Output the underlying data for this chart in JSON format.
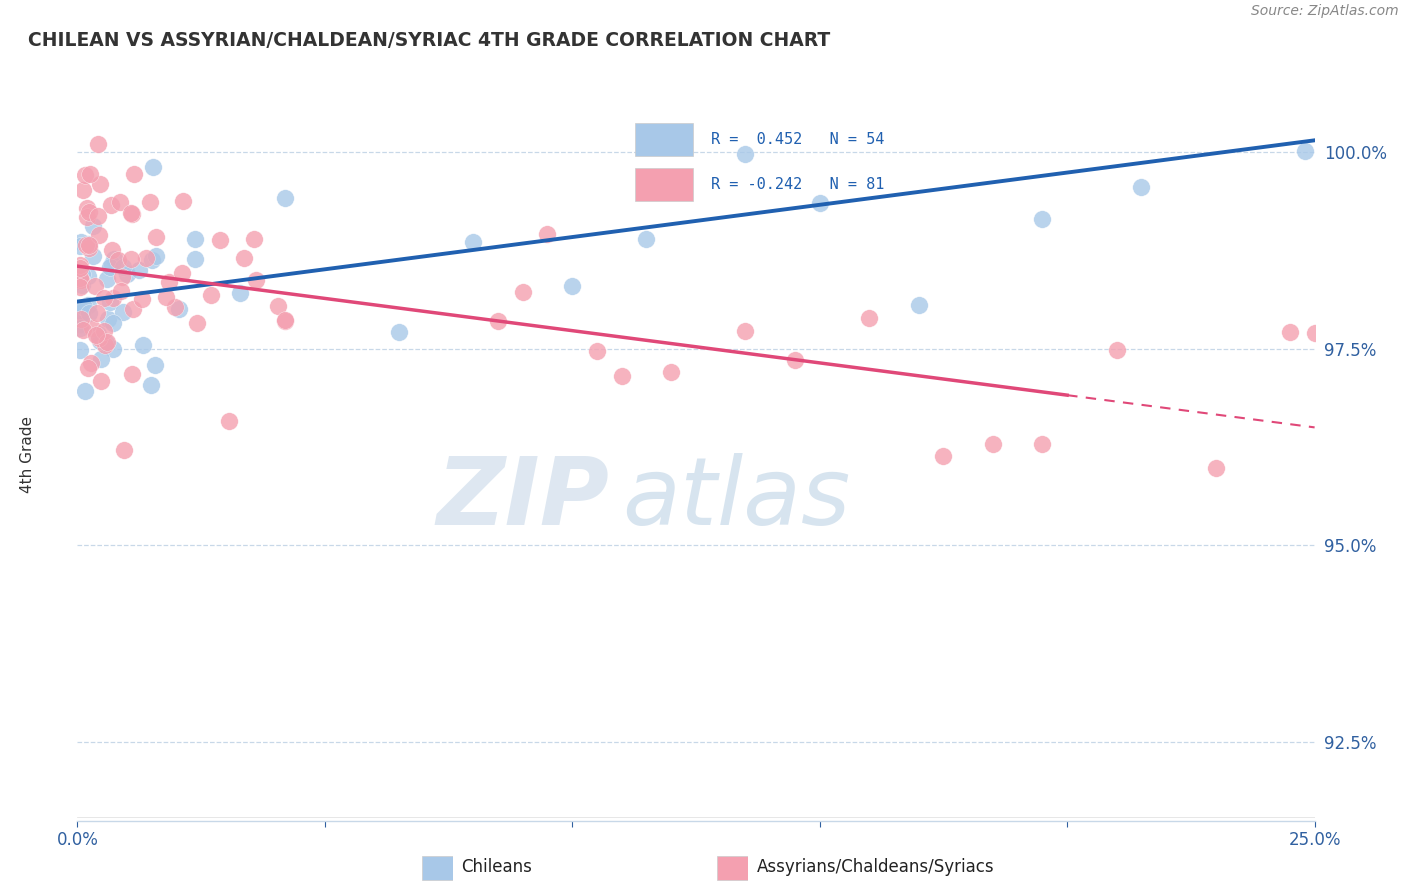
{
  "title": "CHILEAN VS ASSYRIAN/CHALDEAN/SYRIAC 4TH GRADE CORRELATION CHART",
  "source": "Source: ZipAtlas.com",
  "ylabel": "4th Grade",
  "xlim": [
    0.0,
    25.0
  ],
  "ylim": [
    91.5,
    100.8
  ],
  "yticks": [
    92.5,
    95.0,
    97.5,
    100.0
  ],
  "ytick_labels": [
    "92.5%",
    "95.0%",
    "97.5%",
    "100.0%"
  ],
  "blue_R": 0.452,
  "blue_N": 54,
  "pink_R": -0.242,
  "pink_N": 81,
  "blue_color": "#a8c8e8",
  "pink_color": "#f4a0b0",
  "blue_line_color": "#2060b0",
  "pink_line_color": "#e04878",
  "blue_line_y0": 98.1,
  "blue_line_y1": 100.15,
  "pink_line_y0": 98.55,
  "pink_line_y1": 96.5,
  "pink_solid_end_x": 20.0,
  "watermark_zip": "ZIP",
  "watermark_atlas": "atlas",
  "legend_blue_text": "R =  0.452   N = 54",
  "legend_pink_text": "R = -0.242   N = 81",
  "bottom_label_blue": "Chileans",
  "bottom_label_pink": "Assyrians/Chaldeans/Syriacs"
}
